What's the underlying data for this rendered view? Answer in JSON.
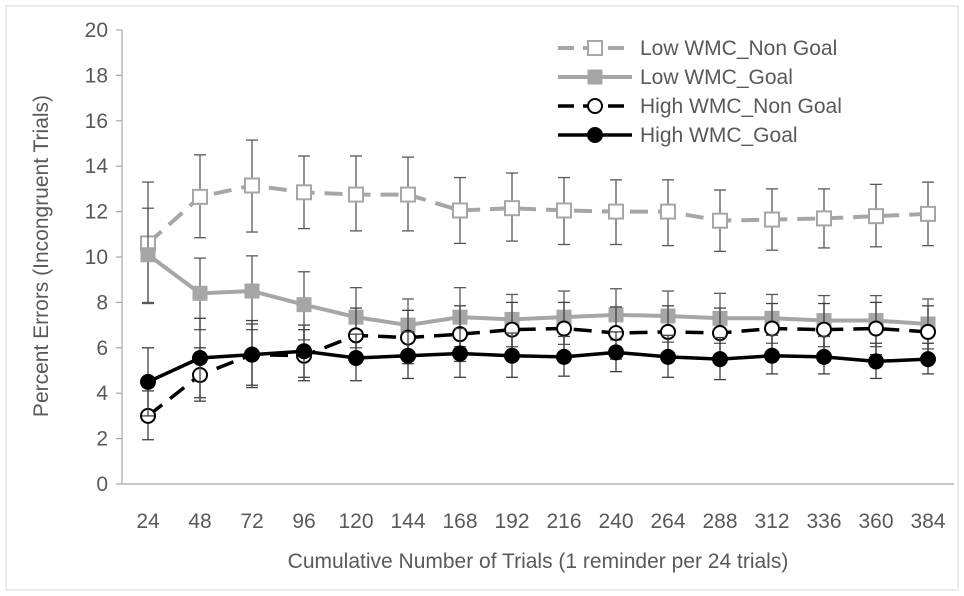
{
  "chart_data": {
    "type": "line",
    "xlabel": "Cumulative Number  of Trials (1 reminder per 24 trials)",
    "ylabel": "Percent Errors (Incongruent Trials)",
    "ylim": [
      0,
      20
    ],
    "yticks": [
      0,
      2,
      4,
      6,
      8,
      10,
      12,
      14,
      16,
      18,
      20
    ],
    "categories": [
      "24",
      "48",
      "72",
      "96",
      "120",
      "144",
      "168",
      "192",
      "216",
      "240",
      "264",
      "288",
      "312",
      "336",
      "360",
      "384"
    ],
    "legend_position": "top-right",
    "grid": false,
    "series": [
      {
        "name": "Low WMC_Non Goal",
        "color": "#a6a6a6",
        "line": "dashed",
        "marker": "open-square",
        "values": [
          10.6,
          12.65,
          13.15,
          12.85,
          12.75,
          12.75,
          12.05,
          12.15,
          12.05,
          12.0,
          12.0,
          11.6,
          11.65,
          11.7,
          11.8,
          11.9
        ],
        "err_lo": [
          8.0,
          10.85,
          11.1,
          11.25,
          11.15,
          11.15,
          10.6,
          10.7,
          10.55,
          10.55,
          10.5,
          10.25,
          10.3,
          10.4,
          10.45,
          10.5
        ],
        "err_hi": [
          13.3,
          14.5,
          15.15,
          14.45,
          14.45,
          14.4,
          13.5,
          13.7,
          13.5,
          13.4,
          13.4,
          12.95,
          13.0,
          13.0,
          13.2,
          13.3
        ]
      },
      {
        "name": "Low WMC_Goal",
        "color": "#a6a6a6",
        "line": "solid",
        "marker": "filled-square",
        "values": [
          10.1,
          8.4,
          8.5,
          7.9,
          7.35,
          7.0,
          7.35,
          7.25,
          7.35,
          7.45,
          7.4,
          7.3,
          7.3,
          7.2,
          7.2,
          7.05
        ],
        "err_lo": [
          7.95,
          6.8,
          6.8,
          6.35,
          6.0,
          5.8,
          6.05,
          6.05,
          6.15,
          6.35,
          6.25,
          6.2,
          6.2,
          6.05,
          6.05,
          5.95
        ],
        "err_hi": [
          12.15,
          9.95,
          10.05,
          9.35,
          8.65,
          8.15,
          8.65,
          8.35,
          8.5,
          8.6,
          8.5,
          8.4,
          8.35,
          8.3,
          8.3,
          8.15
        ]
      },
      {
        "name": "High WMC_Non Goal",
        "color": "#000000",
        "line": "dashed",
        "marker": "open-circle",
        "values": [
          3.0,
          4.8,
          5.7,
          5.65,
          6.55,
          6.45,
          6.6,
          6.8,
          6.85,
          6.65,
          6.7,
          6.65,
          6.85,
          6.8,
          6.85,
          6.7
        ],
        "err_lo": [
          1.95,
          3.65,
          4.25,
          4.55,
          5.35,
          5.3,
          5.4,
          5.6,
          5.7,
          5.5,
          5.55,
          5.5,
          5.75,
          5.6,
          5.7,
          5.6
        ],
        "err_hi": [
          4.1,
          6.0,
          7.2,
          6.8,
          7.75,
          7.65,
          7.85,
          8.0,
          8.0,
          7.8,
          7.85,
          7.75,
          7.95,
          7.95,
          8.0,
          7.85
        ]
      },
      {
        "name": "High WMC_Goal",
        "color": "#000000",
        "line": "solid",
        "marker": "filled-circle",
        "values": [
          4.5,
          5.55,
          5.7,
          5.85,
          5.55,
          5.65,
          5.75,
          5.65,
          5.6,
          5.8,
          5.6,
          5.5,
          5.65,
          5.6,
          5.4,
          5.5
        ],
        "err_lo": [
          3.0,
          3.8,
          4.35,
          4.7,
          4.55,
          4.65,
          4.7,
          4.7,
          4.75,
          4.95,
          4.7,
          4.6,
          4.85,
          4.85,
          4.65,
          4.85
        ],
        "err_hi": [
          6.0,
          7.3,
          7.05,
          7.0,
          6.6,
          6.7,
          6.85,
          6.65,
          6.5,
          6.7,
          6.55,
          6.45,
          6.55,
          6.5,
          6.2,
          6.2
        ]
      }
    ]
  }
}
